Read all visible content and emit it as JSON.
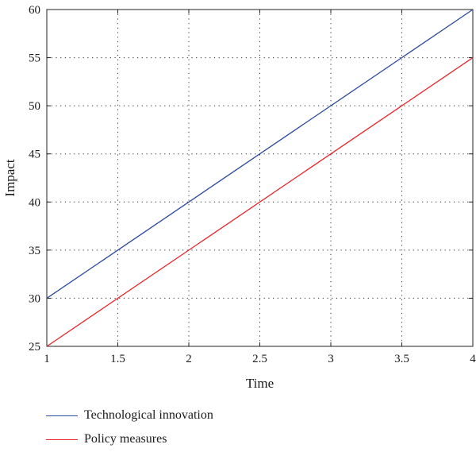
{
  "chart_data": {
    "type": "line",
    "title": "",
    "xlabel": "Time",
    "ylabel": "Impact",
    "xlim": [
      1,
      4
    ],
    "ylim": [
      25,
      60
    ],
    "xticks": [
      1,
      1.5,
      2,
      2.5,
      3,
      3.5,
      4
    ],
    "yticks": [
      25,
      30,
      35,
      40,
      45,
      50,
      55,
      60
    ],
    "grid": true,
    "legend_position": "bottom",
    "series": [
      {
        "name": "Technological innovation",
        "color": "#2b4aa0",
        "x": [
          1,
          2,
          3,
          4
        ],
        "y": [
          30,
          40,
          50,
          60
        ]
      },
      {
        "name": "Policy measures",
        "color": "#e8262b",
        "x": [
          1,
          2,
          3,
          4
        ],
        "y": [
          25,
          35,
          45,
          55
        ]
      }
    ]
  }
}
